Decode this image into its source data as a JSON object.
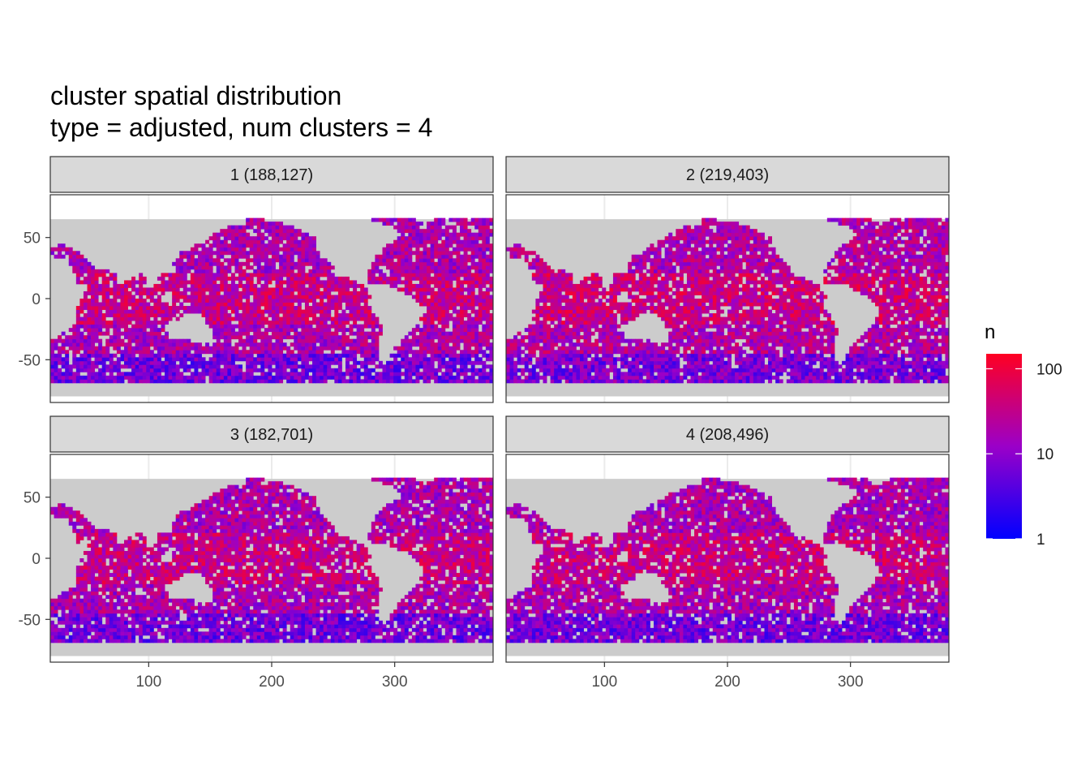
{
  "chart_data": {
    "type": "heatmap",
    "title": "cluster spatial distribution",
    "subtitle": "type = adjusted, num clusters = 4",
    "xlabel": "",
    "ylabel": "",
    "xlim": [
      20,
      380
    ],
    "ylim": [
      -85,
      85
    ],
    "x_ticks": [
      100,
      200,
      300
    ],
    "y_ticks": [
      50,
      0,
      -50
    ],
    "x_tick_labels": [
      "100",
      "200",
      "300"
    ],
    "y_tick_labels": [
      "50",
      "0",
      "-50"
    ],
    "grid": true,
    "legend": {
      "title": "n",
      "position": "right",
      "scale": "log10",
      "range": [
        1,
        150
      ],
      "ticks": [
        1,
        10,
        100
      ],
      "tick_labels": [
        "1",
        "10",
        "100"
      ],
      "low_color": "#0000ff",
      "mid_color": "#9b00c8",
      "high_color": "#ff0022"
    },
    "land_color": "#cccccc",
    "panels": [
      {
        "label": "1 (188,127)",
        "cluster": 1,
        "count": 188127
      },
      {
        "label": "2 (219,403)",
        "cluster": 2,
        "count": 219403
      },
      {
        "label": "3 (182,701)",
        "cluster": 3,
        "count": 182701
      },
      {
        "label": "4 (208,496)",
        "cluster": 4,
        "count": 208496
      }
    ]
  }
}
